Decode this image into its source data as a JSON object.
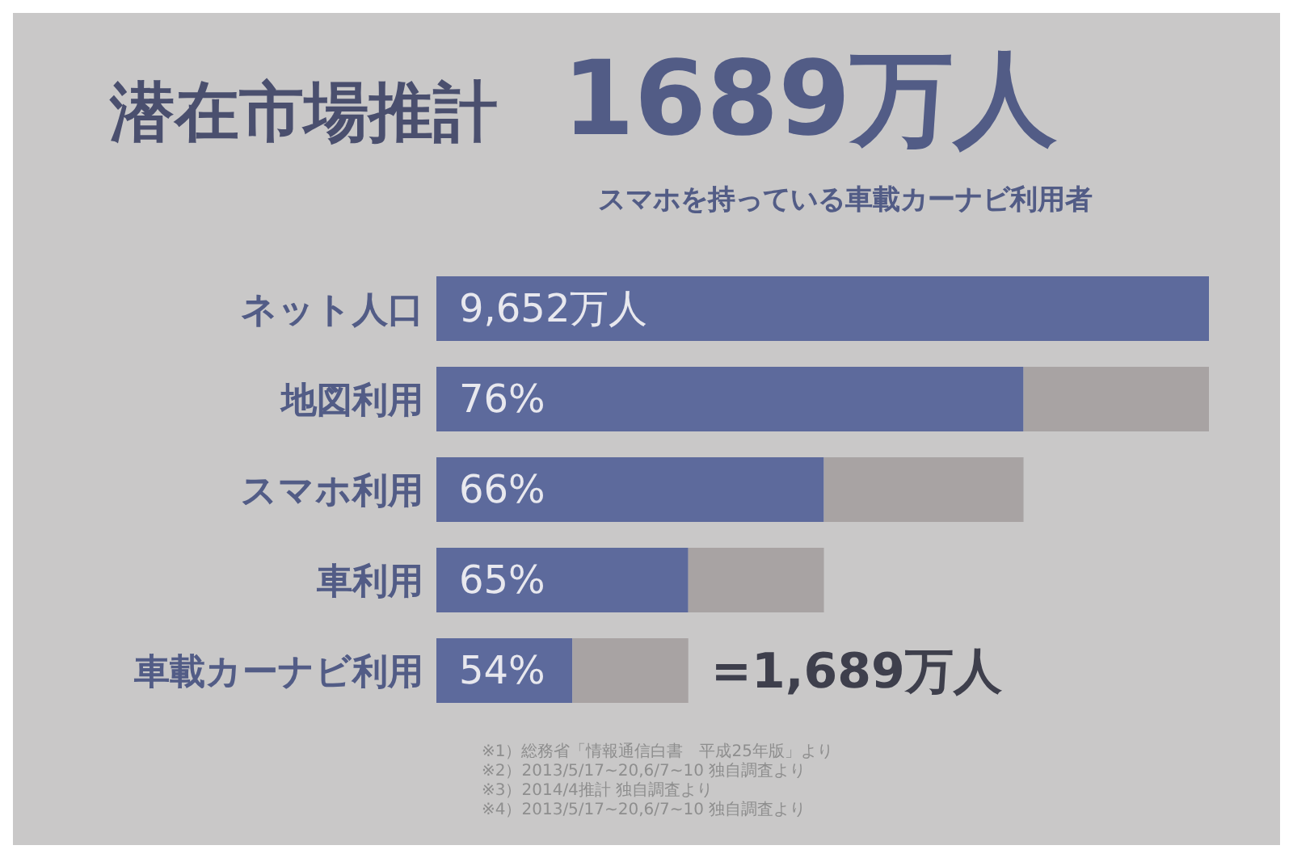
{
  "chart_data": {
    "type": "other",
    "title": "潜在市場推計",
    "subtitle": "1689万人",
    "categories": [
      "ネット人口",
      "地図利用",
      "スマホ利用",
      "車利用",
      "車載カーナビ利用"
    ],
    "series": [
      {
        "color": "#5d6a9c",
        "values": [
          9652,
          76,
          66,
          65,
          54
        ],
        "value_labels": [
          "9,652万人",
          "76%",
          "66%",
          "65%",
          "54%"
        ]
      }
    ],
    "annotations": [
      "スマホを持っている車載カーナビ利用者",
      {
        "text": "=1,689万人",
        "y": "車載カーナビ利用"
      },
      "※1）総務省「情報通信白書　平成25年版」より",
      "※2）2013/5/17~20,6/7~10 独自調査より",
      "※3）2014/4推計 独自調査より",
      "※4）2013/5/17~20,6/7~10 独自調査より"
    ]
  }
}
